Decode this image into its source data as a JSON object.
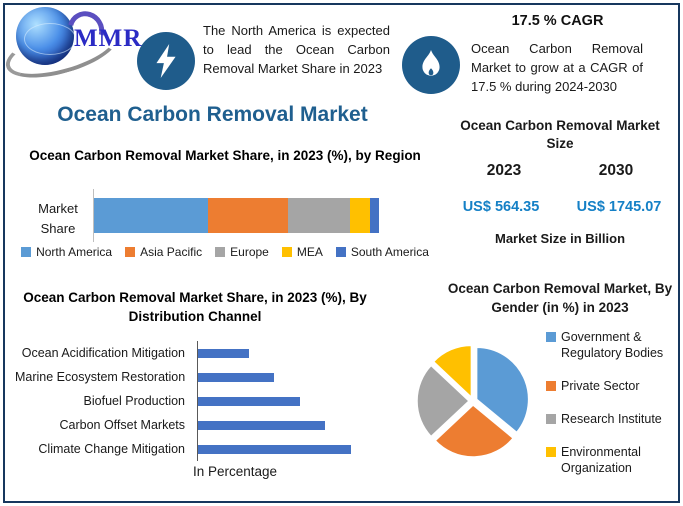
{
  "brand": {
    "name": "MMR"
  },
  "header": {
    "highlight": "The North America is expected to lead the Ocean Carbon Removal Market Share in 2023",
    "cagr_title": "17.5 % CAGR",
    "cagr_text": "Ocean Carbon Removal Market to grow at a CAGR of 17.5 % during 2024-2030"
  },
  "main_title": "Ocean Carbon Removal Market",
  "market_size": {
    "title": "Ocean Carbon Removal Market Size",
    "years": [
      "2023",
      "2030"
    ],
    "values": [
      "US$ 564.35",
      "US$ 1745.07"
    ],
    "note": "Market Size in Billion"
  },
  "colors": {
    "border_navy": "#17375E",
    "icon_circle_blue": "#1F5C8B",
    "title_blue": "#1F5F8F",
    "value_blue": "#1580C6",
    "bar_blue": "#4472C4"
  },
  "chart_data": [
    {
      "type": "bar",
      "subtype": "stacked-horizontal",
      "title": "Ocean Carbon Removal Market Share, in 2023 (%), by Region",
      "category_label": "Market Share",
      "legend_position": "bottom",
      "series": [
        {
          "name": "North America",
          "value": 40,
          "color": "#5B9BD5"
        },
        {
          "name": "Asia Pacific",
          "value": 28,
          "color": "#ED7D31"
        },
        {
          "name": "Europe",
          "value": 22,
          "color": "#A5A5A5"
        },
        {
          "name": "MEA",
          "value": 7,
          "color": "#FFC000"
        },
        {
          "name": "South America",
          "value": 3,
          "color": "#4472C4"
        }
      ]
    },
    {
      "type": "bar",
      "subtype": "horizontal",
      "title": "Ocean Carbon Removal Market Share, in 2023 (%), By Distribution Channel",
      "xlabel": "In Percentage",
      "xlim": [
        0,
        35
      ],
      "bar_color": "#4472C4",
      "categories": [
        "Ocean Acidification Mitigation",
        "Marine Ecosystem Restoration",
        "Biofuel Production",
        "Carbon Offset Markets",
        "Climate Change Mitigation"
      ],
      "values": [
        10,
        15,
        20,
        25,
        30
      ]
    },
    {
      "type": "pie",
      "title": "Ocean Carbon Removal Market, By Gender (in %) in 2023",
      "legend_position": "right",
      "slices": [
        {
          "name": "Government & Regulatory Bodies",
          "value": 36,
          "color": "#5B9BD5"
        },
        {
          "name": "Private Sector",
          "value": 27,
          "color": "#ED7D31"
        },
        {
          "name": "Research Institute",
          "value": 24,
          "color": "#A5A5A5"
        },
        {
          "name": "Environmental Organization",
          "value": 13,
          "color": "#FFC000"
        }
      ]
    }
  ]
}
